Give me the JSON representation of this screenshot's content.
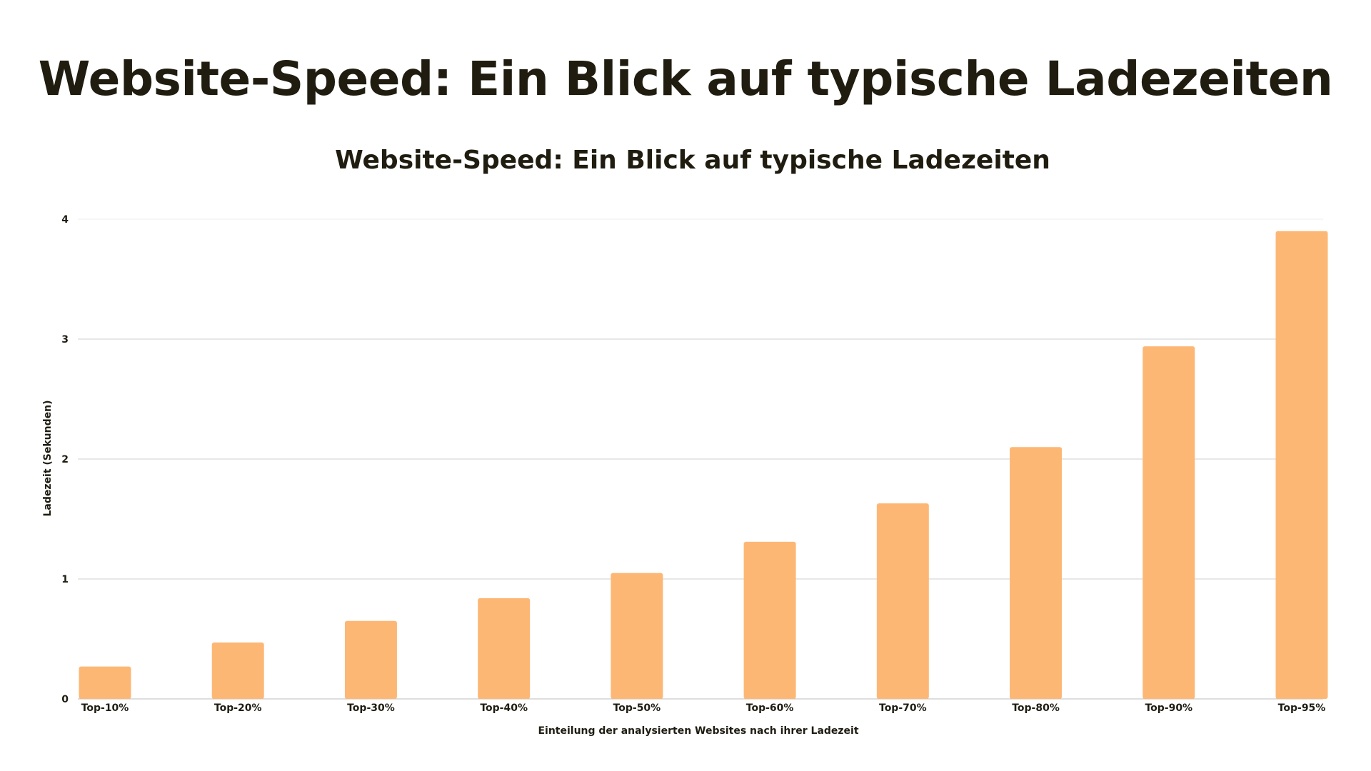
{
  "page": {
    "title": "Website-Speed: Ein Blick auf typische Ladezeiten"
  },
  "chart_data": {
    "type": "bar",
    "title": "Website-Speed: Ein Blick auf typische Ladezeiten",
    "xlabel": "Einteilung der analysierten Websites nach ihrer Ladezeit",
    "ylabel": "Ladezeit (Sekunden)",
    "categories": [
      "Top-10%",
      "Top-20%",
      "Top-30%",
      "Top-40%",
      "Top-50%",
      "Top-60%",
      "Top-70%",
      "Top-80%",
      "Top-90%",
      "Top-95%"
    ],
    "values": [
      0.27,
      0.47,
      0.65,
      0.84,
      1.05,
      1.31,
      1.63,
      2.1,
      2.94,
      3.9
    ],
    "ylim": [
      0,
      4
    ],
    "yticks": [
      0,
      1,
      2,
      3,
      4
    ],
    "grid": true,
    "legend": "none",
    "bar_color": "#fdb775"
  }
}
